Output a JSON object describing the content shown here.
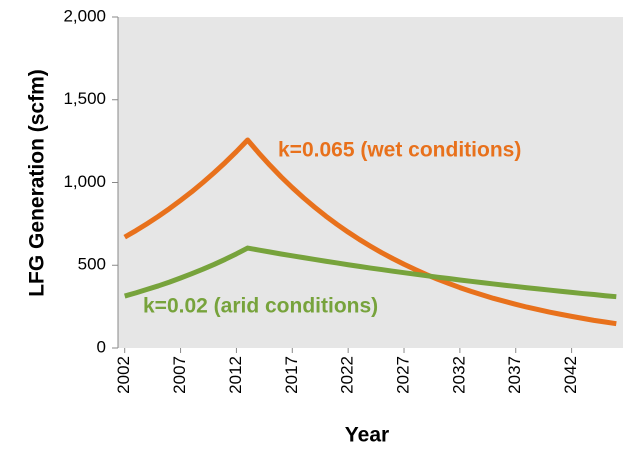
{
  "chart_data": {
    "type": "line",
    "xlabel": "Year",
    "ylabel": "LFG Generation (scfm)",
    "x": [
      2002,
      2003,
      2004,
      2005,
      2006,
      2007,
      2008,
      2009,
      2010,
      2011,
      2012,
      2013,
      2014,
      2015,
      2016,
      2017,
      2018,
      2019,
      2020,
      2021,
      2022,
      2023,
      2024,
      2025,
      2026,
      2027,
      2028,
      2029,
      2030,
      2031,
      2032,
      2033,
      2034,
      2035,
      2036,
      2037,
      2038,
      2039,
      2040,
      2041,
      2042,
      2043,
      2044,
      2045,
      2046
    ],
    "series": [
      {
        "name": "k=0.065 (wet conditions)",
        "color": "#e8711c",
        "values": [
          670,
          709,
          751,
          795,
          842,
          892,
          944,
          1000,
          1059,
          1121,
          1187,
          1257,
          1178,
          1104,
          1034,
          969,
          908,
          851,
          797,
          747,
          700,
          656,
          615,
          576,
          540,
          506,
          474,
          444,
          416,
          390,
          365,
          342,
          321,
          300,
          282,
          264,
          247,
          232,
          217,
          204,
          191,
          179,
          167,
          157,
          147
        ]
      },
      {
        "name": "k=0.02 (arid conditions)",
        "color": "#77a33c",
        "values": [
          314,
          333,
          354,
          375,
          398,
          423,
          449,
          476,
          505,
          536,
          569,
          604,
          592,
          580,
          568,
          557,
          546,
          535,
          524,
          514,
          503,
          493,
          483,
          474,
          464,
          455,
          446,
          437,
          428,
          420,
          411,
          403,
          395,
          387,
          379,
          372,
          364,
          357,
          350,
          343,
          336,
          329,
          323,
          316,
          310
        ]
      }
    ],
    "xlim": [
      2001.4,
      2046.6
    ],
    "xticks": [
      2002,
      2007,
      2012,
      2017,
      2022,
      2027,
      2032,
      2037,
      2042
    ],
    "ylim": [
      0,
      2000
    ],
    "yticks": [
      0,
      500,
      {
        "value": 1000,
        "label": "1,000"
      },
      {
        "value": 1500,
        "label": "1,500"
      },
      {
        "value": 2000,
        "label": "2,000"
      }
    ],
    "grid": false
  }
}
